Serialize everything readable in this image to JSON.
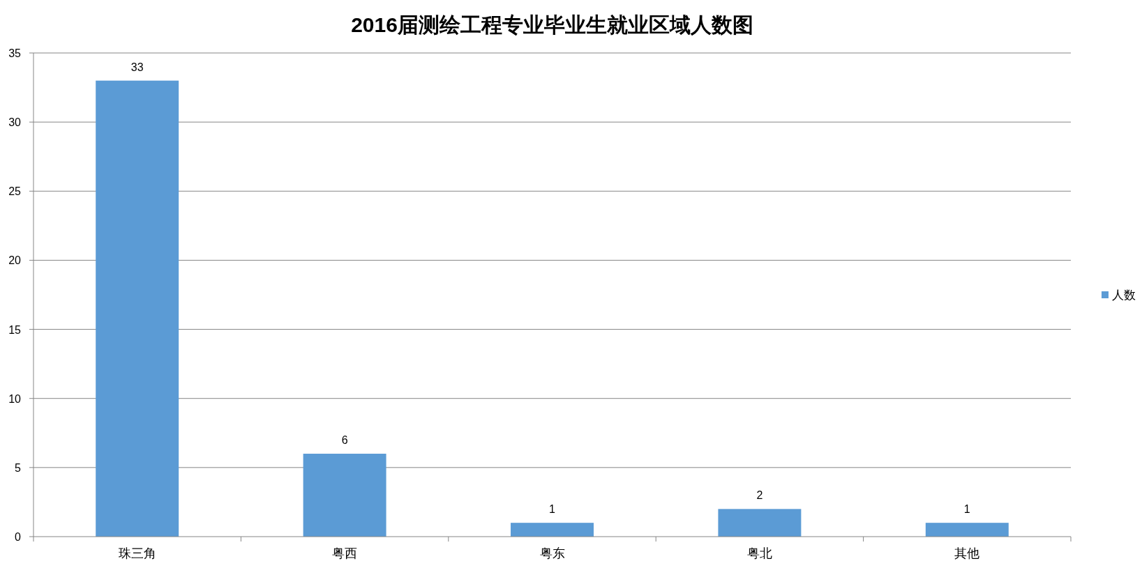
{
  "chart_data": {
    "type": "bar",
    "title": "2016届测绘工程专业毕业生就业区域人数图",
    "categories": [
      "珠三角",
      "粤西",
      "粤东",
      "粤北",
      "其他"
    ],
    "series": [
      {
        "name": "人数",
        "color": "#5b9bd5",
        "values": [
          33,
          6,
          1,
          2,
          1
        ]
      }
    ],
    "ylim": [
      0,
      35
    ],
    "yticks": [
      0,
      5,
      10,
      15,
      20,
      25,
      30,
      35
    ],
    "grid": "y",
    "legend": "right",
    "data_labels": true
  }
}
